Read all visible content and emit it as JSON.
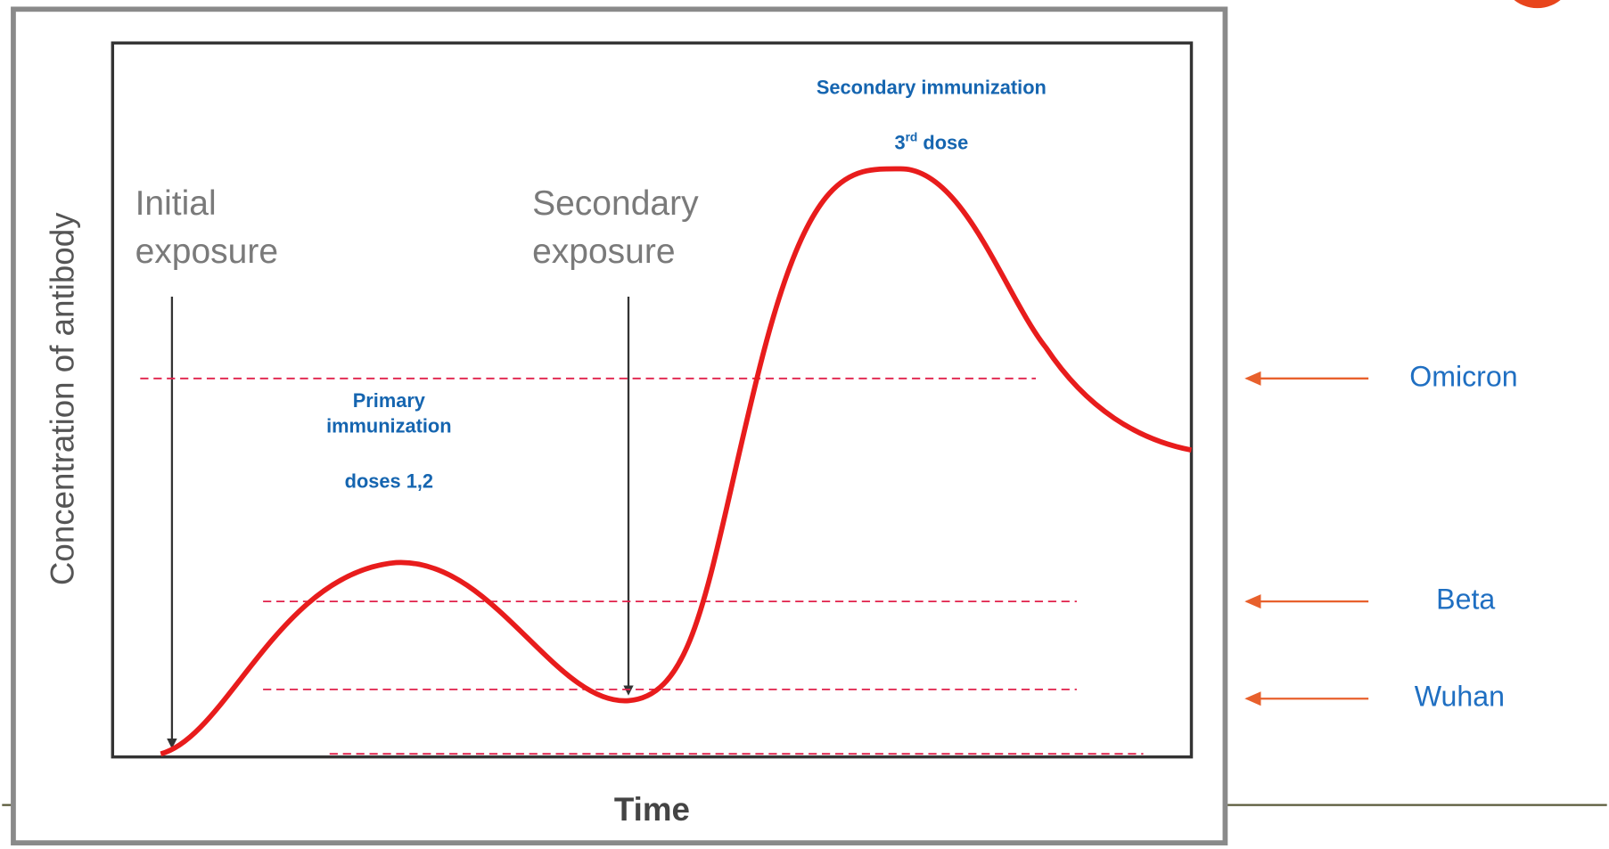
{
  "figure": {
    "y_axis_label": "Concentration of antibody",
    "x_axis_label": "Time",
    "initial_exposure": [
      "Initial",
      "exposure"
    ],
    "secondary_exposure": [
      "Secondary",
      "exposure"
    ],
    "secondary_immunization": {
      "title": "Secondary immunization",
      "dose_number": "3",
      "dose_suffix": "rd",
      "dose_text": " dose"
    },
    "primary_immunization": {
      "title": [
        "Primary",
        "immunization"
      ],
      "doses": "doses 1,2"
    },
    "variants": [
      "Omicron",
      "Beta",
      "Wuhan"
    ]
  }
}
